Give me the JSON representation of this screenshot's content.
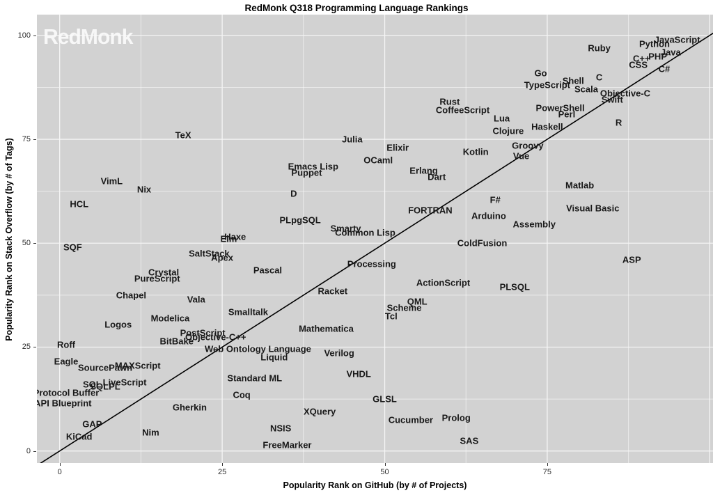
{
  "watermark": "RedMonk",
  "chart_data": {
    "type": "scatter",
    "title": "RedMonk Q318 Programming Language Rankings",
    "xlabel": "Popularity Rank on GitHub (by # of Projects)",
    "ylabel": "Popularity Rank on Stack Overflow (by # of Tags)",
    "xlim": [
      -3.5,
      100.5
    ],
    "ylim": [
      -2.9,
      105
    ],
    "x_ticks": [
      0,
      25,
      50,
      75
    ],
    "y_ticks": [
      0,
      25,
      50,
      75,
      100
    ],
    "minor_ticks": [
      12.5,
      37.5,
      62.5,
      87.5
    ],
    "grid": "on",
    "legend": "none",
    "reference_line": {
      "type": "identity",
      "comment": "y = x diagonal"
    },
    "colors": {
      "panel_bg": "#d2d2d2",
      "grid_major": "#f5f5f5",
      "grid_minor": "rgba(255,255,255,0.55)",
      "point_label": "#191919",
      "reference_line": "#000000",
      "watermark": "rgba(250,250,250,0.92)"
    },
    "points": [
      {
        "label": "JavaScript",
        "x": 95,
        "y": 99
      },
      {
        "label": "Python",
        "x": 91.5,
        "y": 98
      },
      {
        "label": "Java",
        "x": 94,
        "y": 96
      },
      {
        "label": "Ruby",
        "x": 83,
        "y": 97
      },
      {
        "label": "PHP",
        "x": 92,
        "y": 95
      },
      {
        "label": "C++",
        "x": 89.5,
        "y": 94.5
      },
      {
        "label": "CSS",
        "x": 89,
        "y": 93
      },
      {
        "label": "C#",
        "x": 93,
        "y": 92
      },
      {
        "label": "Go",
        "x": 74,
        "y": 91
      },
      {
        "label": "C",
        "x": 83,
        "y": 90
      },
      {
        "label": "Shell",
        "x": 79,
        "y": 89
      },
      {
        "label": "TypeScript",
        "x": 75,
        "y": 88
      },
      {
        "label": "Scala",
        "x": 81,
        "y": 87
      },
      {
        "label": "Objective-C",
        "x": 87,
        "y": 86
      },
      {
        "label": "Swift",
        "x": 85,
        "y": 84.5
      },
      {
        "label": "Rust",
        "x": 60,
        "y": 84
      },
      {
        "label": "CoffeeScript",
        "x": 62,
        "y": 82
      },
      {
        "label": "PowerShell",
        "x": 77,
        "y": 82.5
      },
      {
        "label": "Perl",
        "x": 78,
        "y": 81
      },
      {
        "label": "Lua",
        "x": 68,
        "y": 80
      },
      {
        "label": "R",
        "x": 86,
        "y": 79
      },
      {
        "label": "Haskell",
        "x": 75,
        "y": 78
      },
      {
        "label": "Clojure",
        "x": 69,
        "y": 77
      },
      {
        "label": "TeX",
        "x": 19,
        "y": 76
      },
      {
        "label": "Julia",
        "x": 45,
        "y": 75
      },
      {
        "label": "Groovy",
        "x": 72,
        "y": 73.5
      },
      {
        "label": "Elixir",
        "x": 52,
        "y": 73
      },
      {
        "label": "Kotlin",
        "x": 64,
        "y": 72
      },
      {
        "label": "Vue",
        "x": 71,
        "y": 71
      },
      {
        "label": "OCaml",
        "x": 49,
        "y": 70
      },
      {
        "label": "Emacs Lisp",
        "x": 39,
        "y": 68.5
      },
      {
        "label": "Erlang",
        "x": 56,
        "y": 67.5
      },
      {
        "label": "Puppet",
        "x": 38,
        "y": 67
      },
      {
        "label": "Dart",
        "x": 58,
        "y": 66
      },
      {
        "label": "VimL",
        "x": 8,
        "y": 65
      },
      {
        "label": "Matlab",
        "x": 80,
        "y": 64
      },
      {
        "label": "Nix",
        "x": 13,
        "y": 63
      },
      {
        "label": "D",
        "x": 36,
        "y": 62
      },
      {
        "label": "F#",
        "x": 67,
        "y": 60.5
      },
      {
        "label": "HCL",
        "x": 3,
        "y": 59.5
      },
      {
        "label": "Visual Basic",
        "x": 82,
        "y": 58.5
      },
      {
        "label": "FORTRAN",
        "x": 57,
        "y": 58
      },
      {
        "label": "Arduino",
        "x": 66,
        "y": 56.5
      },
      {
        "label": "PLpgSQL",
        "x": 37,
        "y": 55.5
      },
      {
        "label": "Assembly",
        "x": 73,
        "y": 54.5
      },
      {
        "label": "Smarty",
        "x": 44,
        "y": 53.5
      },
      {
        "label": "Common Lisp",
        "x": 47,
        "y": 52.5
      },
      {
        "label": "Haxe",
        "x": 27,
        "y": 51.5
      },
      {
        "label": "Elm",
        "x": 26,
        "y": 51
      },
      {
        "label": "ColdFusion",
        "x": 65,
        "y": 50
      },
      {
        "label": "SQF",
        "x": 2,
        "y": 49
      },
      {
        "label": "SaltStack",
        "x": 23,
        "y": 47.5
      },
      {
        "label": "Apex",
        "x": 25,
        "y": 46.5
      },
      {
        "label": "ASP",
        "x": 88,
        "y": 46
      },
      {
        "label": "Processing",
        "x": 48,
        "y": 45
      },
      {
        "label": "Pascal",
        "x": 32,
        "y": 43.5
      },
      {
        "label": "Crystal",
        "x": 16,
        "y": 43
      },
      {
        "label": "PureScript",
        "x": 15,
        "y": 41.5
      },
      {
        "label": "ActionScript",
        "x": 59,
        "y": 40.5
      },
      {
        "label": "PLSQL",
        "x": 70,
        "y": 39.5
      },
      {
        "label": "Racket",
        "x": 42,
        "y": 38.5
      },
      {
        "label": "Chapel",
        "x": 11,
        "y": 37.5
      },
      {
        "label": "Vala",
        "x": 21,
        "y": 36.5
      },
      {
        "label": "QML",
        "x": 55,
        "y": 36
      },
      {
        "label": "Scheme",
        "x": 53,
        "y": 34.5
      },
      {
        "label": "Smalltalk",
        "x": 29,
        "y": 33.5
      },
      {
        "label": "Tcl",
        "x": 51,
        "y": 32.5
      },
      {
        "label": "Modelica",
        "x": 17,
        "y": 32
      },
      {
        "label": "Logos",
        "x": 9,
        "y": 30.5
      },
      {
        "label": "Mathematica",
        "x": 41,
        "y": 29.5
      },
      {
        "label": "PostScript",
        "x": 22,
        "y": 28.5
      },
      {
        "label": "Objective-C++",
        "x": 24,
        "y": 27.5
      },
      {
        "label": "BitBake",
        "x": 18,
        "y": 26.5
      },
      {
        "label": "Roff",
        "x": 1,
        "y": 25.5
      },
      {
        "label": "Web Ontology Language",
        "x": 30.5,
        "y": 24.5
      },
      {
        "label": "Verilog",
        "x": 43,
        "y": 23.5
      },
      {
        "label": "Liquid",
        "x": 33,
        "y": 22.5
      },
      {
        "label": "Eagle",
        "x": 1,
        "y": 21.5
      },
      {
        "label": "MAXScript",
        "x": 12,
        "y": 20.5
      },
      {
        "label": "SourcePawn",
        "x": 7,
        "y": 20
      },
      {
        "label": "VHDL",
        "x": 46,
        "y": 18.5
      },
      {
        "label": "Standard ML",
        "x": 30,
        "y": 17.5
      },
      {
        "label": "LiveScript",
        "x": 10,
        "y": 16.5
      },
      {
        "label": "SQL",
        "x": 5,
        "y": 16
      },
      {
        "label": "SQLPL",
        "x": 7,
        "y": 15.5
      },
      {
        "label": "Protocol Buffer",
        "x": 1,
        "y": 14
      },
      {
        "label": "Coq",
        "x": 28,
        "y": 13.5
      },
      {
        "label": "GLSL",
        "x": 50,
        "y": 12.5
      },
      {
        "label": "API Blueprint",
        "x": 0.5,
        "y": 11.5
      },
      {
        "label": "Gherkin",
        "x": 20,
        "y": 10.5
      },
      {
        "label": "XQuery",
        "x": 40,
        "y": 9.5
      },
      {
        "label": "Prolog",
        "x": 61,
        "y": 8
      },
      {
        "label": "Cucumber",
        "x": 54,
        "y": 7.5
      },
      {
        "label": "GAP",
        "x": 5,
        "y": 6.5
      },
      {
        "label": "NSIS",
        "x": 34,
        "y": 5.5
      },
      {
        "label": "Nim",
        "x": 14,
        "y": 4.5
      },
      {
        "label": "KiCad",
        "x": 3,
        "y": 3.5
      },
      {
        "label": "SAS",
        "x": 63,
        "y": 2.5
      },
      {
        "label": "FreeMarker",
        "x": 35,
        "y": 1.5
      }
    ]
  }
}
